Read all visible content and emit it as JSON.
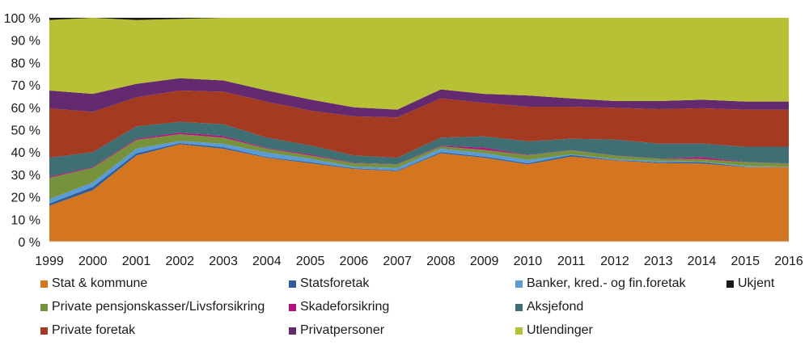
{
  "chart_data": {
    "type": "area",
    "stacked": true,
    "normalized": true,
    "categories": [
      "1999",
      "2000",
      "2001",
      "2002",
      "2003",
      "2004",
      "2005",
      "2006",
      "2007",
      "2008",
      "2009",
      "2010",
      "2011",
      "2012",
      "2013",
      "2014",
      "2015",
      "2016"
    ],
    "yticks": [
      "0 %",
      "10 %",
      "20 %",
      "30 %",
      "40 %",
      "50 %",
      "60 %",
      "70 %",
      "80 %",
      "90 %",
      "100 %"
    ],
    "ylim": [
      0,
      100
    ],
    "grid": false,
    "legend_position": "bottom",
    "series": [
      {
        "name": "Stat & kommune",
        "color": "#d4761f",
        "values": [
          16,
          23,
          38.5,
          43.5,
          41.5,
          37.5,
          35,
          32.5,
          31.5,
          39.5,
          37.5,
          34.5,
          38,
          36.3,
          35.1,
          34.9,
          33.3,
          33.3
        ]
      },
      {
        "name": "Statsforetak",
        "color": "#2e5d9a",
        "values": [
          1,
          1.5,
          1,
          0.5,
          0.7,
          0.3,
          0.5,
          0.3,
          0.3,
          0.5,
          0.5,
          0.5,
          0.7,
          0.2,
          0.4,
          0.6,
          0.2,
          0.1
        ]
      },
      {
        "name": "Banker, kred.- og fin.foretak",
        "color": "#5a9bd5",
        "values": [
          2,
          2,
          2,
          1,
          1.5,
          2,
          1.5,
          0.7,
          1.2,
          1.5,
          1.5,
          1.5,
          0.3,
          0.4,
          0.5,
          0.2,
          0.4,
          0.1
        ]
      },
      {
        "name": "Private pensjonskasser/Livsforsikring",
        "color": "#76923c",
        "values": [
          9.5,
          6.5,
          4,
          3,
          2.8,
          1.7,
          1.5,
          1.5,
          1.5,
          1,
          1.5,
          2.1,
          1.8,
          1.5,
          1,
          1.2,
          1.6,
          1.3
        ]
      },
      {
        "name": "Skadeforsikring",
        "color": "#b5117e",
        "values": [
          0.5,
          0.3,
          0.5,
          0.7,
          0.7,
          0.3,
          0.5,
          0.2,
          0.1,
          0.3,
          1,
          0.1,
          0.1,
          0.1,
          0.1,
          0.9,
          0.1,
          0.1
        ]
      },
      {
        "name": "Aksjefond",
        "color": "#3f6e73",
        "values": [
          8.5,
          6.7,
          5.5,
          4.8,
          5.3,
          4.7,
          4,
          3.3,
          2.9,
          3.7,
          5,
          6.1,
          5.1,
          7.1,
          6.7,
          6,
          6.8,
          7.5
        ]
      },
      {
        "name": "Private foretak",
        "color": "#a33a21",
        "values": [
          22,
          18,
          13,
          14,
          14.5,
          16,
          15.5,
          17.5,
          18,
          17.5,
          15,
          15.5,
          14.3,
          14.2,
          15.4,
          15.8,
          16.6,
          16.6
        ]
      },
      {
        "name": "Privatpersoner",
        "color": "#632a6f",
        "values": [
          8,
          8,
          6,
          5.5,
          5,
          5,
          5,
          4,
          3.5,
          4,
          4,
          5,
          3.7,
          3,
          3.6,
          3.8,
          3.6,
          3.6
        ]
      },
      {
        "name": "Utlendinger",
        "color": "#b8c035",
        "values": [
          31.5,
          34,
          28.5,
          26.5,
          28,
          32.5,
          36.5,
          40,
          41,
          32,
          34,
          34.7,
          36,
          37.2,
          37.2,
          36.6,
          37.4,
          37.4
        ]
      },
      {
        "name": "Ukjent",
        "color": "#1a1a1a",
        "values": [
          1,
          0,
          1,
          0.5,
          0,
          0,
          0,
          0,
          0,
          0,
          0,
          0,
          0,
          0,
          0,
          0,
          0,
          0
        ]
      }
    ]
  }
}
